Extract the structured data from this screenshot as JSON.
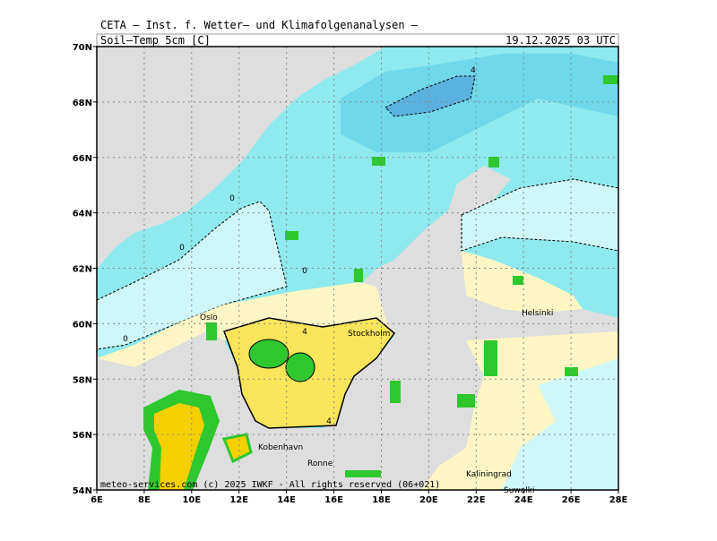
{
  "header": {
    "title": "CETA – Inst. f. Wetter– und Klimafolgenanalysen –",
    "variable": "Soil–Temp_5cm [C]",
    "valid_time": "19.12.2025 03 UTC"
  },
  "map": {
    "lon_labels": [
      "6E",
      "8E",
      "10E",
      "12E",
      "14E",
      "16E",
      "18E",
      "20E",
      "22E",
      "24E",
      "26E",
      "28E"
    ],
    "lat_labels": [
      "54N",
      "56N",
      "58N",
      "60N",
      "62N",
      "64N",
      "66N",
      "68N",
      "70N"
    ],
    "cities": [
      "Oslo",
      "Stockholm",
      "Helsinki",
      "Kaliningrad",
      "Ronne",
      "Kobenhavn",
      "Suwalki"
    ],
    "contour_labels": [
      "0",
      "0",
      "0",
      "0",
      "4",
      "4",
      "4"
    ],
    "credit": "meteo-services.com (c) 2025 IWKF - All rights reserved (06+021)"
  }
}
